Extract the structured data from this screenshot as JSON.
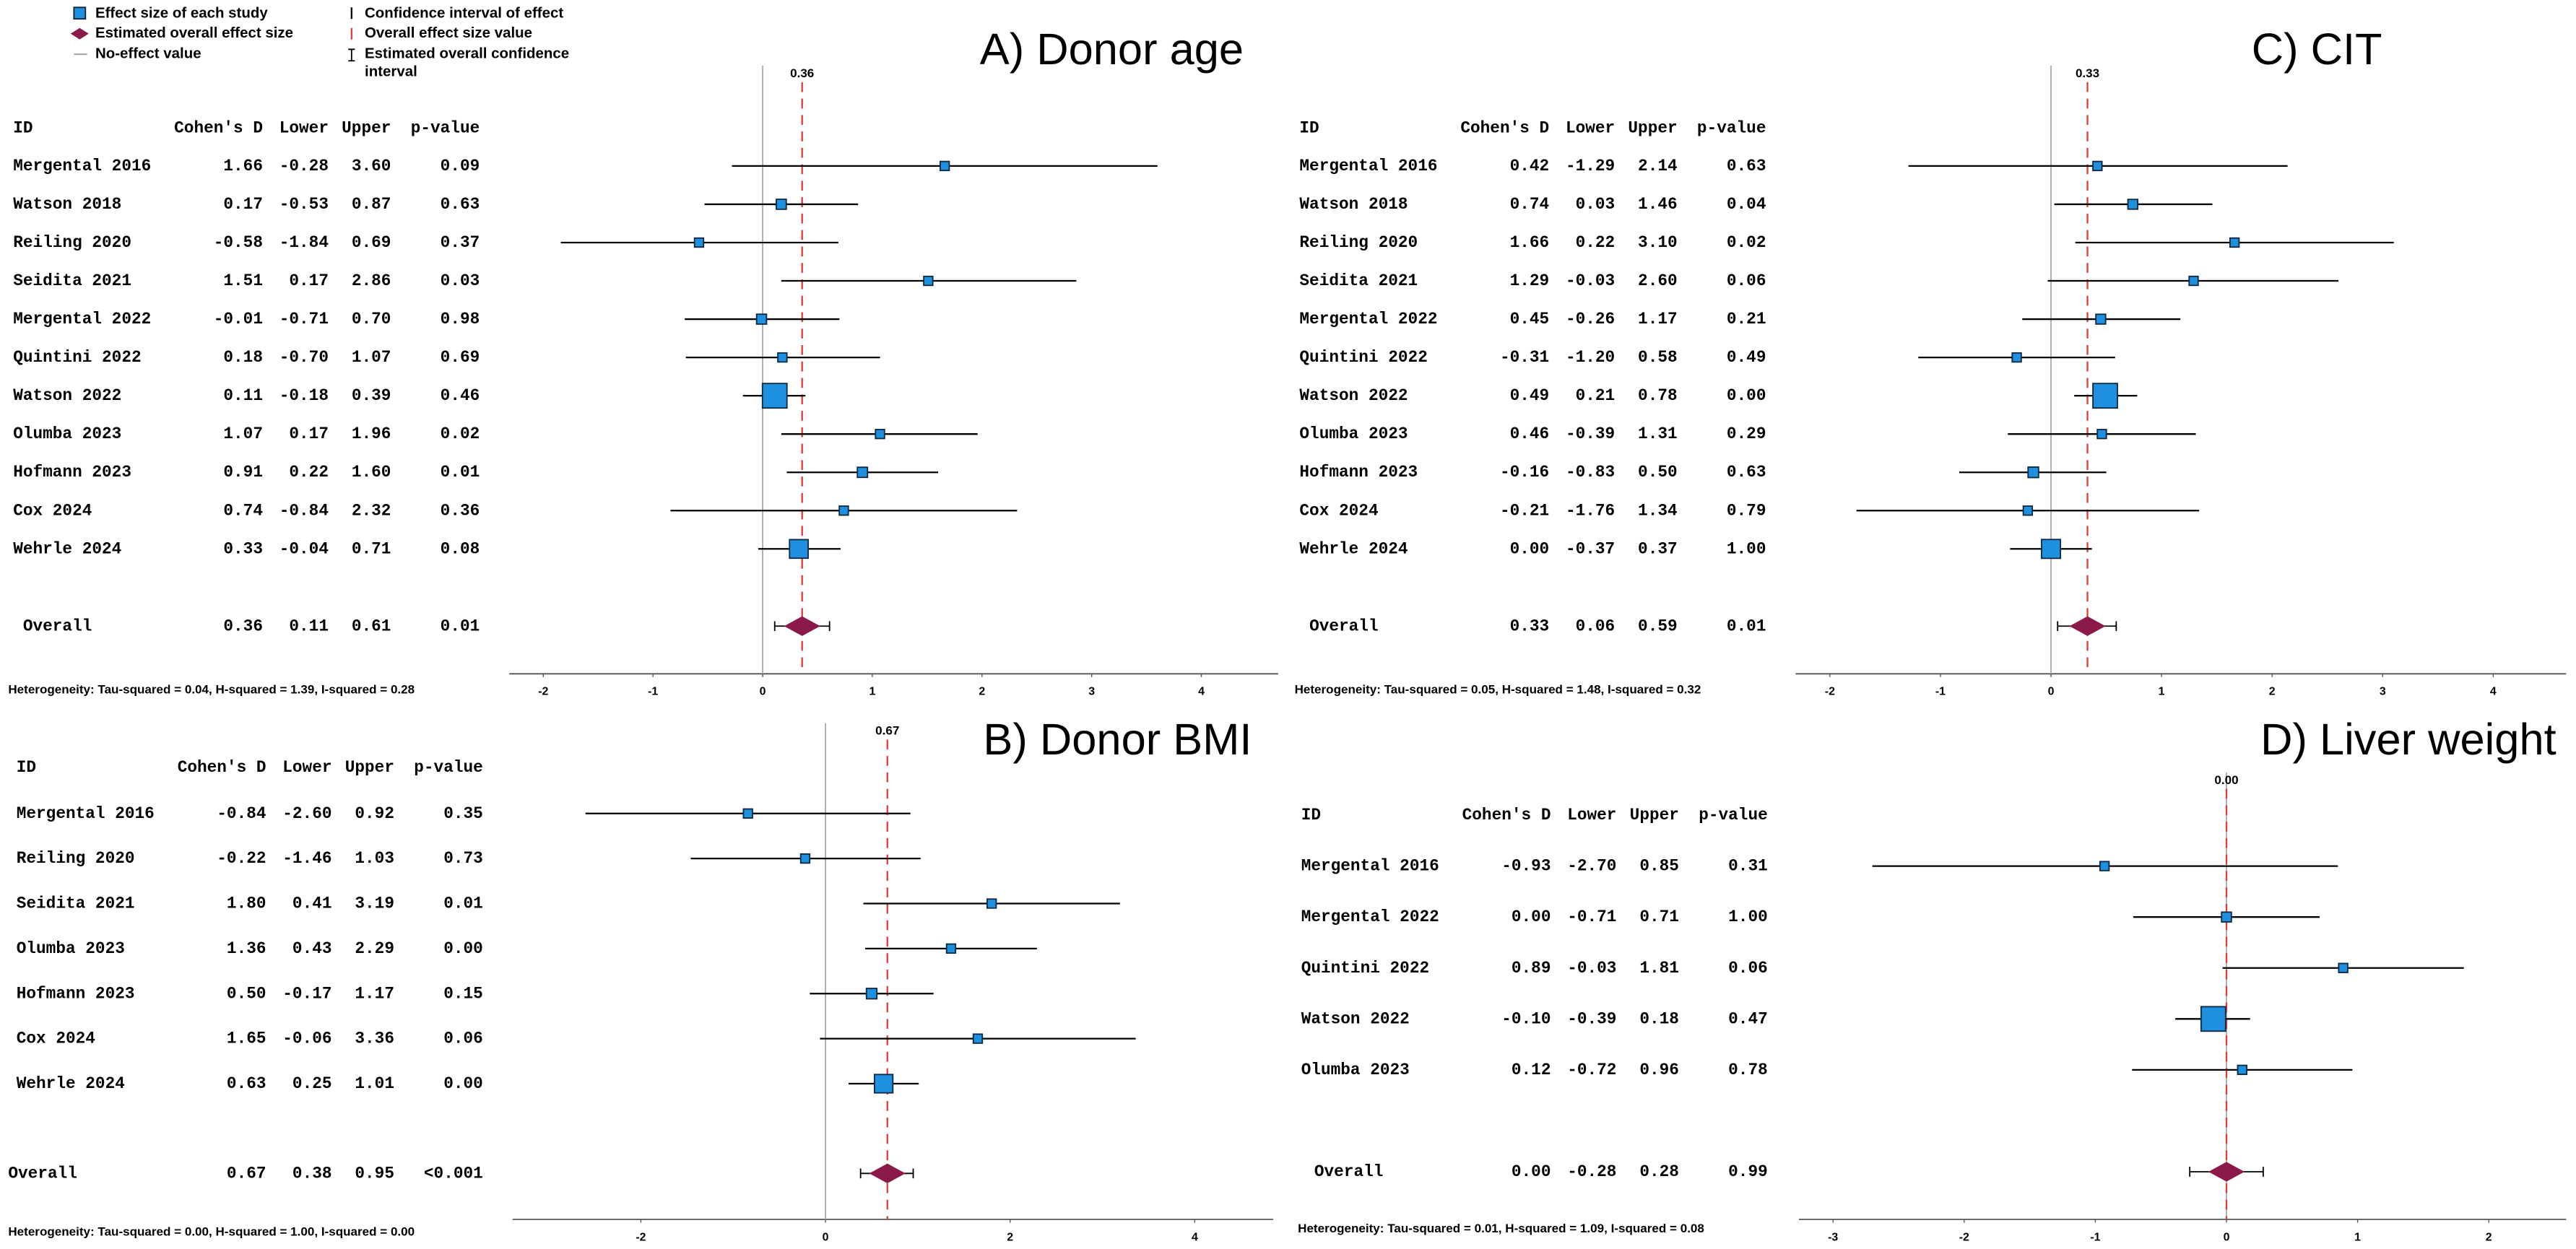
{
  "legend": {
    "items": [
      "Effect size of each study",
      "Estimated overall effect size",
      "No-effect value",
      "Confidence interval of effect",
      "Overall effect size value"
    ],
    "ci_item": [
      "Estimated overall confidence",
      "interval"
    ]
  },
  "chart_data": [
    {
      "type": "forest",
      "title": "A) Donor age",
      "columns": [
        "ID",
        "Cohen's D",
        "Lower",
        "Upper",
        "p-value"
      ],
      "rows": [
        {
          "id": "Mergental 2016",
          "d": 1.66,
          "lower": -0.28,
          "upper": 3.6,
          "p": 0.09
        },
        {
          "id": "Watson 2018",
          "d": 0.17,
          "lower": -0.53,
          "upper": 0.87,
          "p": 0.63
        },
        {
          "id": "Reiling 2020",
          "d": -0.58,
          "lower": -1.84,
          "upper": 0.69,
          "p": 0.37
        },
        {
          "id": "Seidita 2021",
          "d": 1.51,
          "lower": 0.17,
          "upper": 2.86,
          "p": 0.03
        },
        {
          "id": "Mergental 2022",
          "d": -0.01,
          "lower": -0.71,
          "upper": 0.7,
          "p": 0.98
        },
        {
          "id": "Quintini 2022",
          "d": 0.18,
          "lower": -0.7,
          "upper": 1.07,
          "p": 0.69
        },
        {
          "id": "Watson 2022",
          "d": 0.11,
          "lower": -0.18,
          "upper": 0.39,
          "p": 0.46
        },
        {
          "id": "Olumba 2023",
          "d": 1.07,
          "lower": 0.17,
          "upper": 1.96,
          "p": 0.02
        },
        {
          "id": "Hofmann 2023",
          "d": 0.91,
          "lower": 0.22,
          "upper": 1.6,
          "p": 0.01
        },
        {
          "id": "Cox 2024",
          "d": 0.74,
          "lower": -0.84,
          "upper": 2.32,
          "p": 0.36
        },
        {
          "id": "Wehrle 2024",
          "d": 0.33,
          "lower": -0.04,
          "upper": 0.71,
          "p": 0.08
        }
      ],
      "overall": {
        "id": "Overall",
        "d": 0.36,
        "lower": 0.11,
        "upper": 0.61,
        "p": 0.01
      },
      "heterogeneity": "Heterogeneity: Tau-squared = 0.04, H-squared = 1.39, I-squared = 0.28",
      "xlim": [
        -2.31,
        4.7
      ],
      "xticks": [
        -2,
        -1,
        0,
        1,
        2,
        3,
        4
      ]
    },
    {
      "type": "forest",
      "title": "B) Donor BMI",
      "columns": [
        "ID",
        "Cohen's D",
        "Lower",
        "Upper",
        "p-value"
      ],
      "rows": [
        {
          "id": "Mergental 2016",
          "d": -0.84,
          "lower": -2.6,
          "upper": 0.92,
          "p": 0.35
        },
        {
          "id": "Reiling 2020",
          "d": -0.22,
          "lower": -1.46,
          "upper": 1.03,
          "p": 0.73
        },
        {
          "id": "Seidita 2021",
          "d": 1.8,
          "lower": 0.41,
          "upper": 3.19,
          "p": 0.01
        },
        {
          "id": "Olumba 2023",
          "d": 1.36,
          "lower": 0.43,
          "upper": 2.29,
          "p": 0.0
        },
        {
          "id": "Hofmann 2023",
          "d": 0.5,
          "lower": -0.17,
          "upper": 1.17,
          "p": 0.15
        },
        {
          "id": "Cox 2024",
          "d": 1.65,
          "lower": -0.06,
          "upper": 3.36,
          "p": 0.06
        },
        {
          "id": "Wehrle 2024",
          "d": 0.63,
          "lower": 0.25,
          "upper": 1.01,
          "p": 0.0
        }
      ],
      "overall": {
        "id": "Overall",
        "d": 0.67,
        "lower": 0.38,
        "upper": 0.95,
        "p": "<0.001"
      },
      "heterogeneity": "Heterogeneity: Tau-squared = 0.00, H-squared = 1.00, I-squared = 0.00",
      "xlim": [
        -3.39,
        4.85
      ],
      "xticks": [
        -2,
        0,
        2,
        4
      ]
    },
    {
      "type": "forest",
      "title": "C) CIT",
      "columns": [
        "ID",
        "Cohen's D",
        "Lower",
        "Upper",
        "p-value"
      ],
      "rows": [
        {
          "id": "Mergental 2016",
          "d": 0.42,
          "lower": -1.29,
          "upper": 2.14,
          "p": 0.63
        },
        {
          "id": "Watson 2018",
          "d": 0.74,
          "lower": 0.03,
          "upper": 1.46,
          "p": 0.04
        },
        {
          "id": "Reiling 2020",
          "d": 1.66,
          "lower": 0.22,
          "upper": 3.1,
          "p": 0.02
        },
        {
          "id": "Seidita 2021",
          "d": 1.29,
          "lower": -0.03,
          "upper": 2.6,
          "p": 0.06
        },
        {
          "id": "Mergental 2022",
          "d": 0.45,
          "lower": -0.26,
          "upper": 1.17,
          "p": 0.21
        },
        {
          "id": "Quintini 2022",
          "d": -0.31,
          "lower": -1.2,
          "upper": 0.58,
          "p": 0.49
        },
        {
          "id": "Watson 2022",
          "d": 0.49,
          "lower": 0.21,
          "upper": 0.78,
          "p": 0.0
        },
        {
          "id": "Olumba 2023",
          "d": 0.46,
          "lower": -0.39,
          "upper": 1.31,
          "p": 0.29
        },
        {
          "id": "Hofmann 2023",
          "d": -0.16,
          "lower": -0.83,
          "upper": 0.5,
          "p": 0.63
        },
        {
          "id": "Cox 2024",
          "d": -0.21,
          "lower": -1.76,
          "upper": 1.34,
          "p": 0.79
        },
        {
          "id": "Wehrle 2024",
          "d": 0.0,
          "lower": -0.37,
          "upper": 0.37,
          "p": 1.0
        }
      ],
      "overall": {
        "id": "Overall",
        "d": 0.33,
        "lower": 0.06,
        "upper": 0.59,
        "p": 0.01
      },
      "heterogeneity": "Heterogeneity: Tau-squared = 0.05, H-squared = 1.48, I-squared = 0.32",
      "xlim": [
        -2.31,
        4.66
      ],
      "xticks": [
        -2,
        -1,
        0,
        1,
        2,
        3,
        4
      ]
    },
    {
      "type": "forest",
      "title": "D) Liver weight",
      "columns": [
        "ID",
        "Cohen's D",
        "Lower",
        "Upper",
        "p-value"
      ],
      "rows": [
        {
          "id": "Mergental 2016",
          "d": -0.93,
          "lower": -2.7,
          "upper": 0.85,
          "p": 0.31
        },
        {
          "id": "Mergental 2022",
          "d": 0.0,
          "lower": -0.71,
          "upper": 0.71,
          "p": 1.0
        },
        {
          "id": "Quintini 2022",
          "d": 0.89,
          "lower": -0.03,
          "upper": 1.81,
          "p": 0.06
        },
        {
          "id": "Watson 2022",
          "d": -0.1,
          "lower": -0.39,
          "upper": 0.18,
          "p": 0.47
        },
        {
          "id": "Olumba 2023",
          "d": 0.12,
          "lower": -0.72,
          "upper": 0.96,
          "p": 0.78
        }
      ],
      "overall": {
        "id": "Overall",
        "d": 0.0,
        "lower": -0.28,
        "upper": 0.28,
        "p": 0.99
      },
      "heterogeneity": "Heterogeneity: Tau-squared = 0.01, H-squared = 1.09, I-squared = 0.08",
      "xlim": [
        -3.26,
        2.59
      ],
      "xticks": [
        -3,
        -2,
        -1,
        0,
        1,
        2
      ]
    }
  ]
}
